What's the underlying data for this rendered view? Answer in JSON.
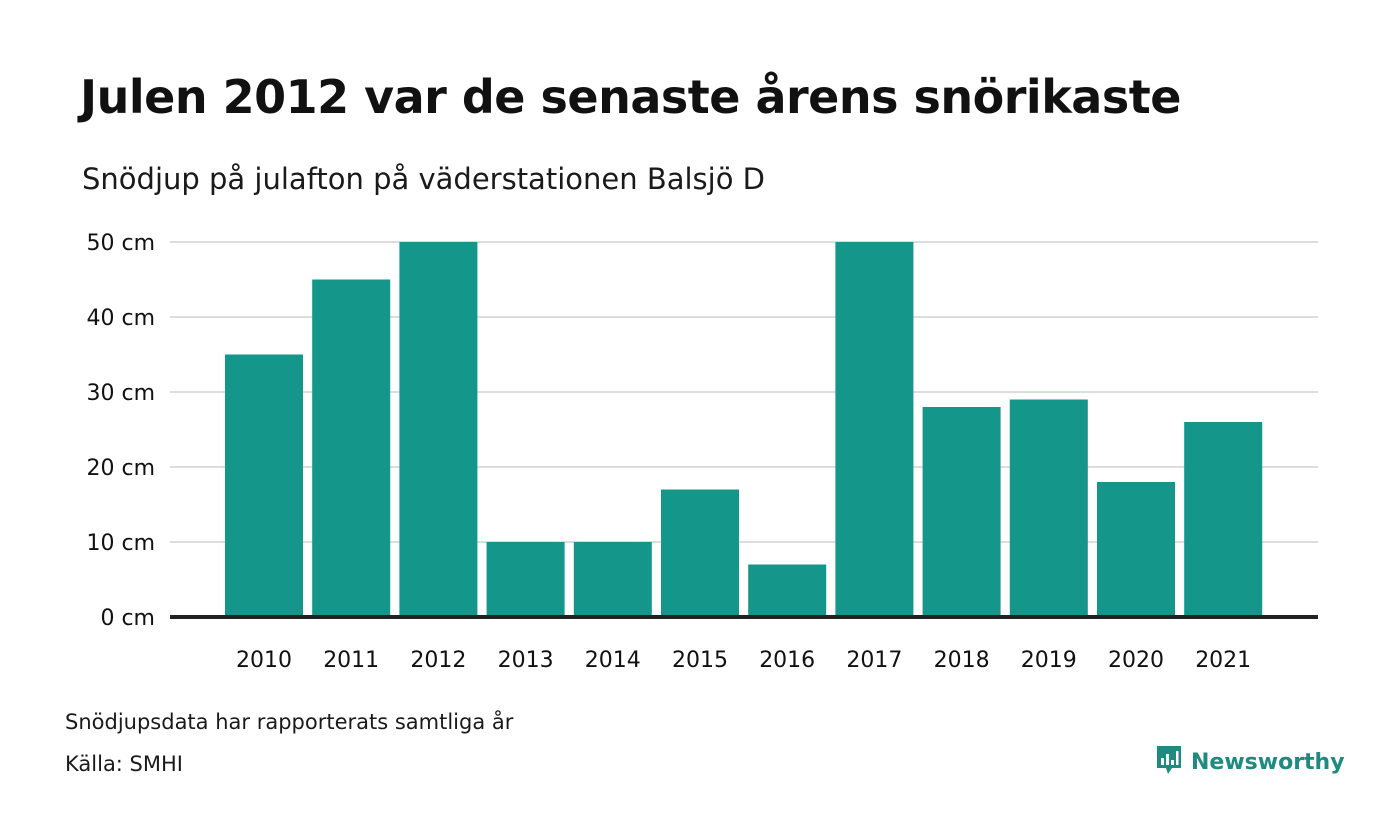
{
  "header": {
    "title": "Julen 2012 var de senaste årens snörikaste",
    "subtitle": "Snödjup på julafton på väderstationen Balsjö D"
  },
  "footer": {
    "note": "Snödjupsdata har rapporterats samtliga år",
    "source": "Källa: SMHI",
    "brand": "Newsworthy",
    "brand_icon": "bar-chart-speech-bubble-icon"
  },
  "colors": {
    "bar": "#14968a",
    "grid": "#dddddd",
    "axis": "#222222",
    "brand": "#1e8a80"
  },
  "chart_data": {
    "type": "bar",
    "categories": [
      "2010",
      "2011",
      "2012",
      "2013",
      "2014",
      "2015",
      "2016",
      "2017",
      "2018",
      "2019",
      "2020",
      "2021"
    ],
    "values": [
      35,
      45,
      50,
      10,
      10,
      17,
      7,
      50,
      28,
      29,
      18,
      26
    ],
    "ylim": [
      0,
      50
    ],
    "yticks": [
      0,
      10,
      20,
      30,
      40,
      50
    ],
    "ytick_labels": [
      "0 cm",
      "10 cm",
      "20 cm",
      "30 cm",
      "40 cm",
      "50 cm"
    ],
    "xlabel": "",
    "ylabel": "",
    "grid": true
  }
}
